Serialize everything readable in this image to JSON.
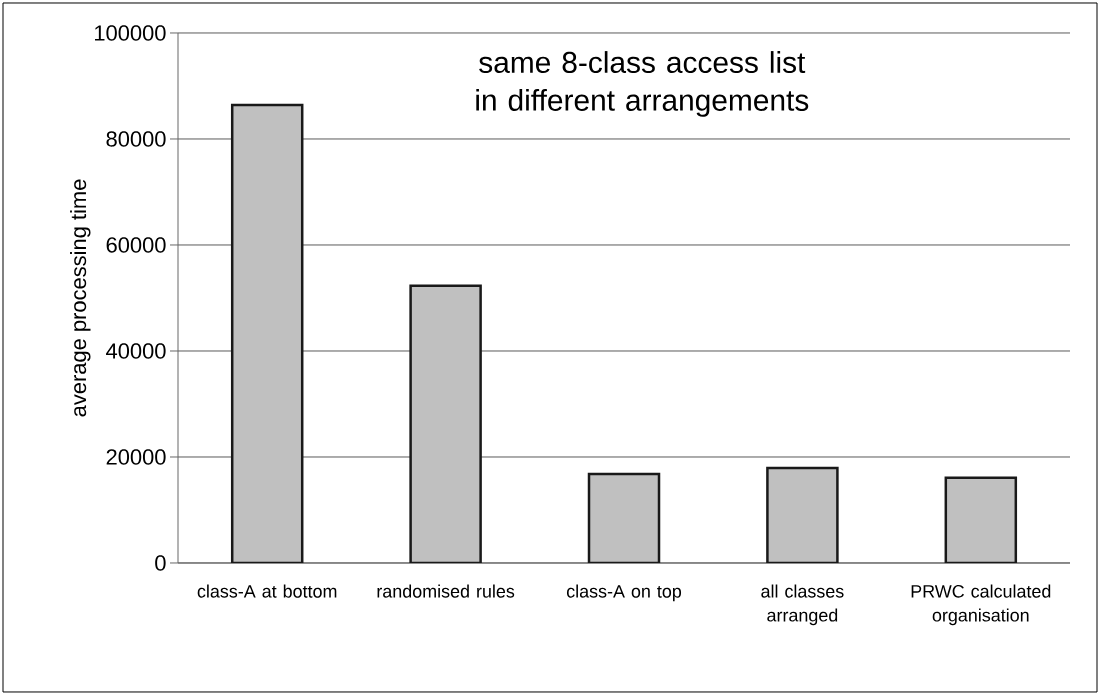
{
  "chart_data": {
    "type": "bar",
    "title": "same 8-class access list in different arrangements",
    "ylabel": "average processing time",
    "categories": [
      "class-A at bottom",
      "randomised rules",
      "class-A on top",
      "all classes arranged",
      "PRWC calculated organisation"
    ],
    "values": [
      86400,
      52300,
      16800,
      17900,
      16100
    ],
    "color": "#c0c0c0",
    "ylim": [
      0,
      100000
    ],
    "yticks": [
      0,
      20000,
      40000,
      60000,
      80000,
      100000
    ],
    "grid": "y"
  }
}
